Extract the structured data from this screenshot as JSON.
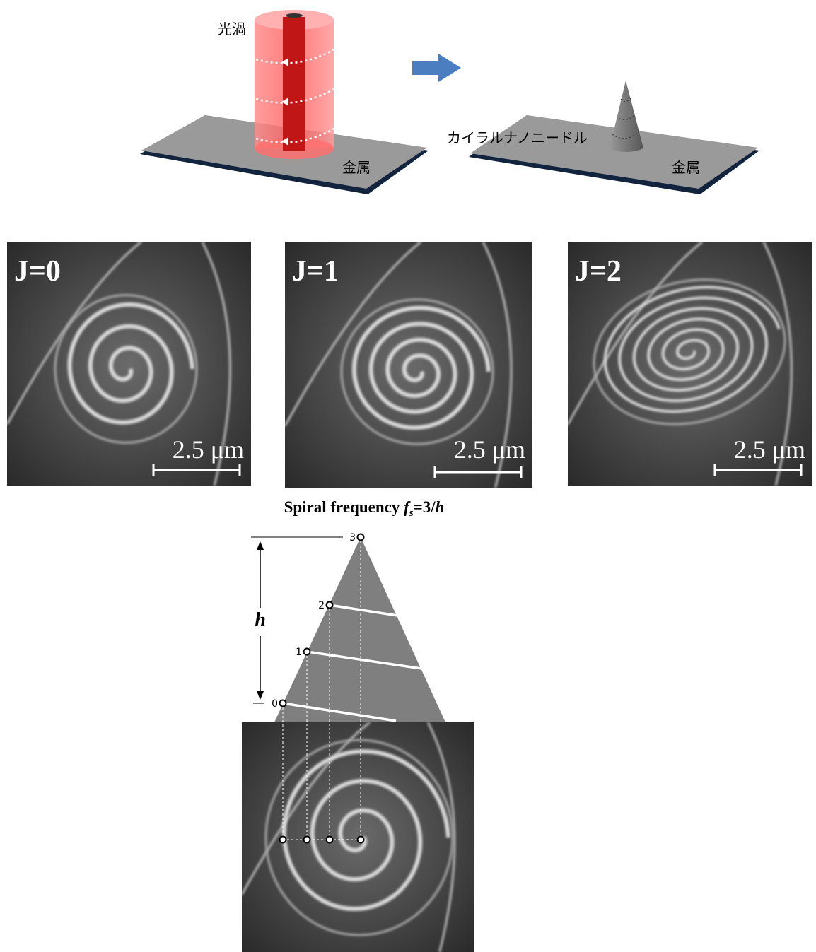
{
  "top_diagram": {
    "vortex_label": "光渦",
    "metal_left": "金属",
    "needle_label": "カイラルナノニードル",
    "metal_right": "金属"
  },
  "panels": [
    {
      "label": "J=0",
      "scale": "2.5 μm"
    },
    {
      "label": "J=1",
      "scale": "2.5 μm"
    },
    {
      "label": "J=2",
      "scale": "2.5 μm"
    }
  ],
  "spiral_figure": {
    "title": {
      "prefix": "Spiral frequency",
      "symbol": "f",
      "subscript": "s",
      "equals": "=3/",
      "variable": "h"
    },
    "height_label": "h",
    "markers": [
      "3",
      "2",
      "1",
      "0"
    ]
  }
}
